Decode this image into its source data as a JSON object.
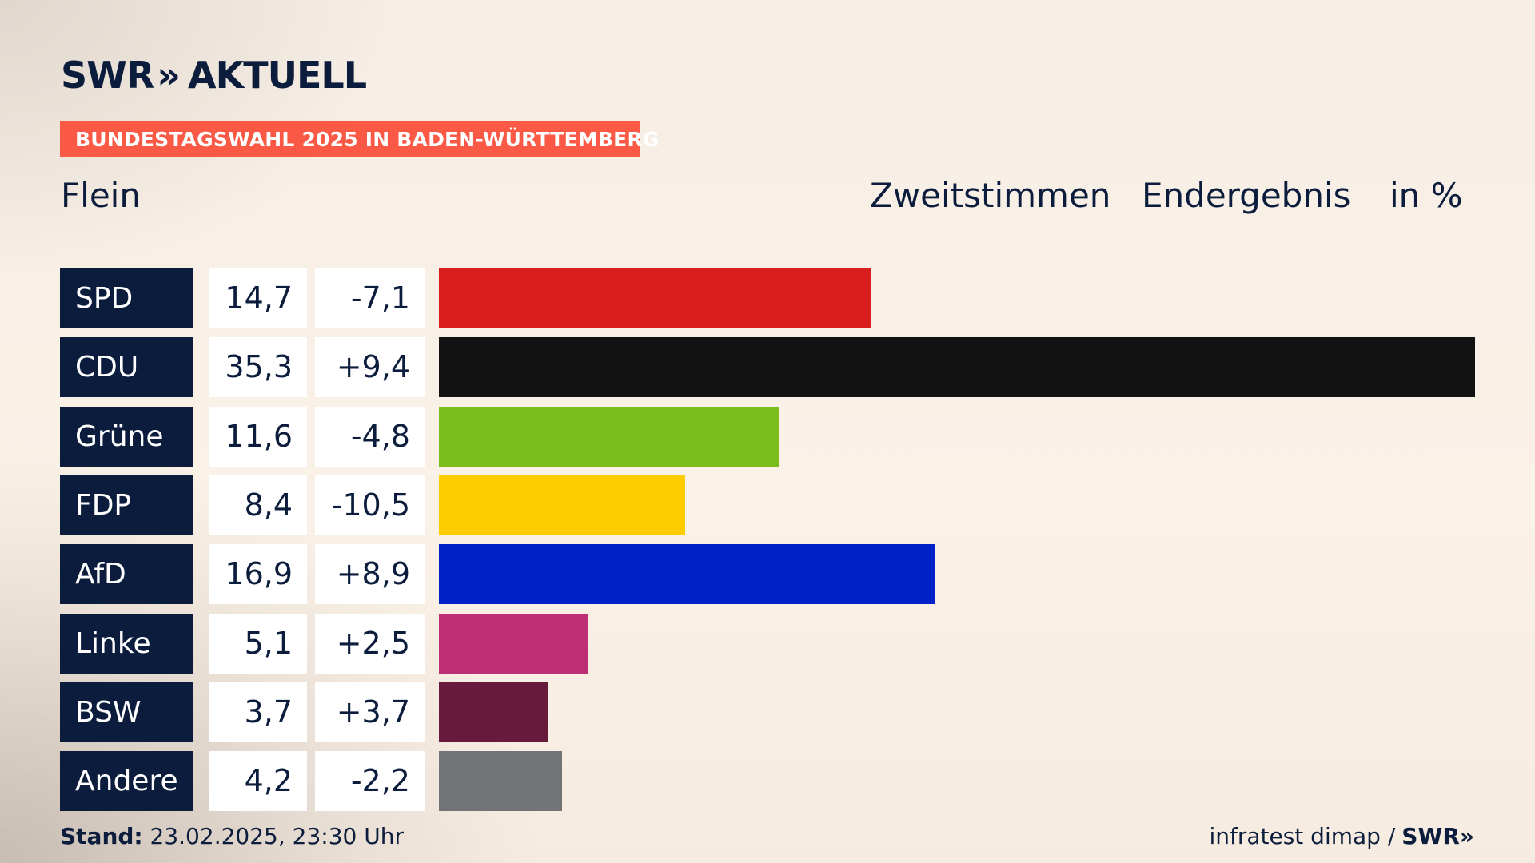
{
  "brand": {
    "name": "SWR",
    "chevrons": "»",
    "product": "AKTUELL"
  },
  "banner": "BUNDESTAGSWAHL 2025 IN BADEN-WÜRTTEMBERG",
  "region": "Flein",
  "header": {
    "vote_type": "Zweitstimmen",
    "status": "Endergebnis",
    "unit": "in %"
  },
  "chart_data": {
    "type": "bar",
    "orientation": "horizontal",
    "categories": [
      "SPD",
      "CDU",
      "Grüne",
      "FDP",
      "AfD",
      "Linke",
      "BSW",
      "Andere"
    ],
    "values": [
      14.7,
      35.3,
      11.6,
      8.4,
      16.9,
      5.1,
      3.7,
      4.2
    ],
    "value_labels": [
      "14,7",
      "35,3",
      "11,6",
      "8,4",
      "16,9",
      "5,1",
      "3,7",
      "4,2"
    ],
    "change_labels": [
      "-7,1",
      "+9,4",
      "-4,8",
      "-10,5",
      "+8,9",
      "+2,5",
      "+3,7",
      "-2,2"
    ],
    "changes": [
      -7.1,
      9.4,
      -4.8,
      -10.5,
      8.9,
      2.5,
      3.7,
      -2.2
    ],
    "colors": [
      "#d81e1e",
      "#121212",
      "#7cbd1e",
      "#ffcc00",
      "#0020c8",
      "#bd3075",
      "#661a3c",
      "#727375"
    ],
    "xlim": [
      0,
      35.3
    ],
    "grid": false,
    "legend": "none"
  },
  "footer": {
    "stand_label": "Stand:",
    "stand_value": "23.02.2025, 23:30 Uhr",
    "source": "infratest dimap /",
    "source_brand": "SWR",
    "source_chevrons": "»"
  }
}
